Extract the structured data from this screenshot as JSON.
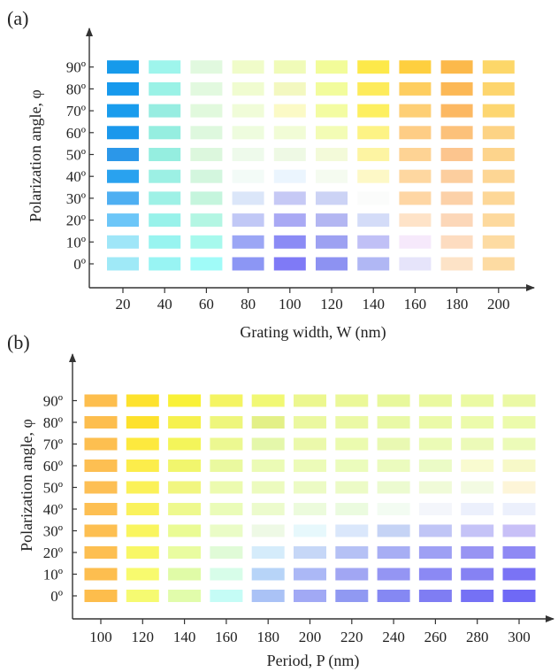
{
  "chart_data": [
    {
      "type": "heatmap",
      "panel_label": "(a)",
      "xlabel": "Grating width, W (nm)",
      "ylabel": "Polarization angle, φ",
      "x": [
        "20",
        "40",
        "60",
        "80",
        "100",
        "120",
        "140",
        "160",
        "180",
        "200"
      ],
      "y": [
        "0º",
        "10º",
        "20º",
        "30º",
        "40º",
        "50º",
        "60º",
        "70º",
        "80º",
        "90º"
      ],
      "cell_colors": [
        [
          "#9fe9f7",
          "#98f4f3",
          "#a0fbf8",
          "#8c96f4",
          "#7f7af6",
          "#8d92f2",
          "#b0b7f4",
          "#e6e4fa",
          "#fde3c7",
          "#fddba2"
        ],
        [
          "#9fe6f8",
          "#98f4f0",
          "#a7f9ed",
          "#9ba6f5",
          "#8b8bf5",
          "#9da1f2",
          "#c0c0f6",
          "#f6e9fb",
          "#fddcc0",
          "#fddba2"
        ],
        [
          "#6cc6f8",
          "#98f2ea",
          "#b3f6e3",
          "#c1c8f6",
          "#a9a9f4",
          "#b3b6f2",
          "#d4dcf8",
          "#fee3c8",
          "#fcd7b8",
          "#fdd99d"
        ],
        [
          "#4eaff2",
          "#9ef1e6",
          "#c5f5dd",
          "#dbe6f9",
          "#c6c9f5",
          "#ccd3f5",
          "#fbfcfb",
          "#fed6a4",
          "#fcd1a8",
          "#fdd797"
        ],
        [
          "#29a2ef",
          "#9cf0e4",
          "#d3f6de",
          "#f3fbf7",
          "#ebf5fe",
          "#f5fbf0",
          "#fdf8c6",
          "#fed7a0",
          "#fcce9e",
          "#fdd694"
        ],
        [
          "#2b97e9",
          "#95eee0",
          "#dcf7dd",
          "#eefaeb",
          "#eef9e4",
          "#f3fad9",
          "#fdf4a2",
          "#fed394",
          "#fcc58e",
          "#fdd48c"
        ],
        [
          "#1a98ec",
          "#95eee0",
          "#def8de",
          "#eefcde",
          "#f1fcd6",
          "#f3fcb5",
          "#fdf385",
          "#fecd85",
          "#fcc17a",
          "#fdd384"
        ],
        [
          "#199ced",
          "#97ede1",
          "#e1f9dd",
          "#f0fcd8",
          "#fbfac6",
          "#f3fca2",
          "#fdef60",
          "#fecf75",
          "#fcb862",
          "#fdd670"
        ],
        [
          "#1699ed",
          "#9af2e6",
          "#e2f9df",
          "#f0fcd0",
          "#f3f8c0",
          "#f2fc9c",
          "#fdeb5b",
          "#fece60",
          "#fcb855",
          "#fdd56d"
        ],
        [
          "#169aeb",
          "#9ef5ec",
          "#e1f9df",
          "#f0fcc9",
          "#f0fbb8",
          "#f2fc99",
          "#fde94a",
          "#fecf3f",
          "#fcb94b",
          "#fdd769"
        ]
      ]
    },
    {
      "type": "heatmap",
      "panel_label": "(b)",
      "xlabel": "Period, P (nm)",
      "ylabel": "Polarization angle, φ",
      "x": [
        "100",
        "120",
        "140",
        "160",
        "180",
        "200",
        "220",
        "240",
        "260",
        "280",
        "300"
      ],
      "y": [
        "0º",
        "10º",
        "20º",
        "30º",
        "40º",
        "50º",
        "60º",
        "70º",
        "80º",
        "90º"
      ],
      "cell_colors": [
        [
          "#fdbd4c",
          "#f6fa71",
          "#e1fcab",
          "#c5fcf6",
          "#aac2f6",
          "#a1a9f5",
          "#9099f2",
          "#8588f3",
          "#7f7df3",
          "#7571f5",
          "#6f69f6"
        ],
        [
          "#fdbe4f",
          "#f8fa6e",
          "#e0fba7",
          "#d7fde9",
          "#b7d4f8",
          "#abb8f6",
          "#a1a6f3",
          "#9495f3",
          "#8b89f4",
          "#8682f3",
          "#7a73f5"
        ],
        [
          "#fdbf51",
          "#f8f766",
          "#e9fca0",
          "#e0fbd7",
          "#d5ecfb",
          "#c6d7f7",
          "#b5c1f5",
          "#a7aef4",
          "#9ea0f4",
          "#9894f3",
          "#8f89f4"
        ],
        [
          "#fdbf51",
          "#f9f55f",
          "#eafb94",
          "#eafcc6",
          "#eef9e5",
          "#e7f8fc",
          "#dae7fb",
          "#c5d3f5",
          "#c0c5f6",
          "#c5c3f7",
          "#c8c0f7"
        ],
        [
          "#fdbf52",
          "#faf25c",
          "#eef98e",
          "#eafcb8",
          "#ecfbcc",
          "#ecfbdc",
          "#ebfbdf",
          "#f3fcf2",
          "#f4f6fb",
          "#ecf0fc",
          "#ecf0fc"
        ],
        [
          "#fdbf54",
          "#fbf158",
          "#f1f680",
          "#ecfbaf",
          "#ecfbbe",
          "#ecfbc4",
          "#ecfbc6",
          "#ecfbd0",
          "#f0fbd8",
          "#f3fbe2",
          "#fdf5d8"
        ],
        [
          "#fdbf52",
          "#fced4b",
          "#f1f66d",
          "#eaf99f",
          "#ebfbb5",
          "#ecfbb8",
          "#ebfcbc",
          "#ebfbbe",
          "#ebfbc6",
          "#f9fbd0",
          "#f7f9c8"
        ],
        [
          "#fdbf50",
          "#fde93e",
          "#f4f55a",
          "#ecf891",
          "#e4f7aa",
          "#ebf9ab",
          "#ebfbaf",
          "#e9f9b2",
          "#ebfbb6",
          "#ecfab8",
          "#ecfbb8"
        ],
        [
          "#fdbe4e",
          "#fde12c",
          "#f6f14e",
          "#eef67c",
          "#e3f087",
          "#ebf8a0",
          "#ebf9a5",
          "#e9f9a6",
          "#ebfaa8",
          "#ecfbab",
          "#ecfbac"
        ],
        [
          "#fdbe4d",
          "#fde22d",
          "#f9f137",
          "#f4f462",
          "#f1f874",
          "#ecf78f",
          "#ebf898",
          "#e8f89c",
          "#eaf9a0",
          "#ebfaa3",
          "#ebf9a5"
        ]
      ]
    }
  ]
}
